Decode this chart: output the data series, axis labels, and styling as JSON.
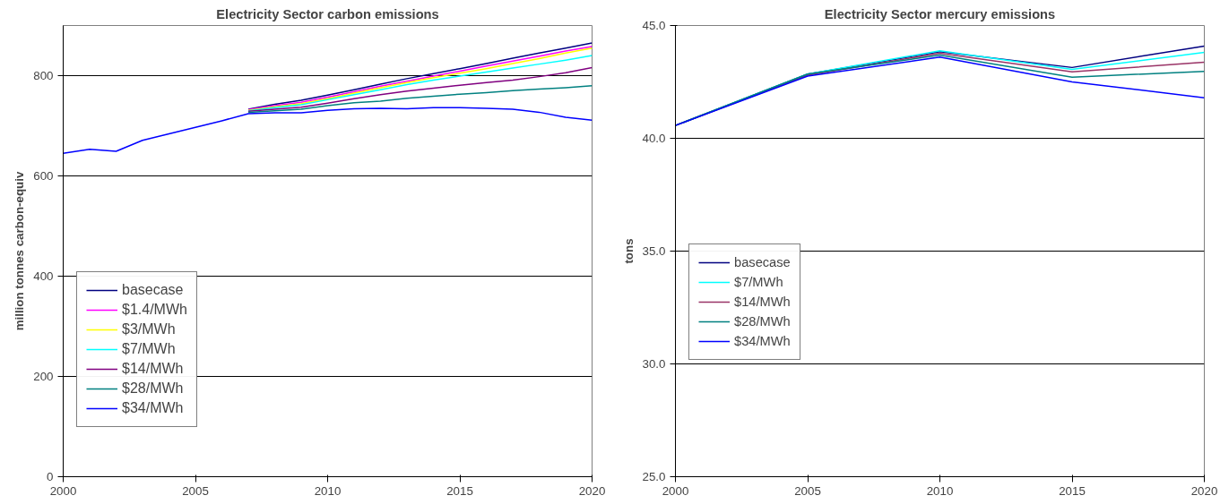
{
  "chart_data": [
    {
      "type": "line",
      "title": "Electricity Sector carbon emissions",
      "ylabel": "million tonnes carbon-equiv",
      "x": [
        2000,
        2001,
        2002,
        2003,
        2004,
        2005,
        2006,
        2007,
        2008,
        2009,
        2010,
        2011,
        2012,
        2013,
        2014,
        2015,
        2016,
        2017,
        2018,
        2019,
        2020
      ],
      "xlim": [
        2000,
        2020
      ],
      "xticks": [
        2000,
        2005,
        2010,
        2015,
        2020
      ],
      "ylim": [
        0,
        900
      ],
      "yticks": [
        0,
        200,
        400,
        600,
        800
      ],
      "grid": "y",
      "legend": "bottom left",
      "marker": "none",
      "line_style": "solid",
      "series": [
        {
          "name": "basecase",
          "color": "#000080",
          "values": [
            null,
            null,
            null,
            null,
            null,
            null,
            null,
            733,
            743,
            751,
            761,
            772,
            783,
            794,
            804,
            814,
            824,
            835,
            845,
            855,
            865
          ]
        },
        {
          "name": "$1.4/MWh",
          "color": "#ff00ff",
          "values": [
            null,
            null,
            null,
            null,
            null,
            null,
            null,
            732,
            740,
            747,
            757,
            768,
            779,
            789,
            799,
            809,
            819,
            829,
            839,
            849,
            858
          ]
        },
        {
          "name": "$3/MWh",
          "color": "#ffff00",
          "values": [
            null,
            null,
            null,
            null,
            null,
            null,
            null,
            731,
            738,
            744,
            754,
            765,
            776,
            786,
            796,
            805,
            814,
            824,
            834,
            845,
            855
          ]
        },
        {
          "name": "$7/MWh",
          "color": "#00ffff",
          "values": [
            null,
            null,
            null,
            null,
            null,
            null,
            null,
            730,
            736,
            742,
            752,
            762,
            772,
            782,
            791,
            799,
            807,
            815,
            823,
            831,
            840
          ]
        },
        {
          "name": "$14/MWh",
          "color": "#800080",
          "values": [
            null,
            null,
            null,
            null,
            null,
            null,
            null,
            729,
            733,
            737,
            745,
            754,
            762,
            769,
            775,
            781,
            786,
            791,
            798,
            806,
            816
          ]
        },
        {
          "name": "$28/MWh",
          "color": "#008080",
          "values": [
            null,
            null,
            null,
            null,
            null,
            null,
            null,
            727,
            730,
            733,
            740,
            746,
            749,
            755,
            759,
            763,
            766,
            770,
            773,
            776,
            780
          ]
        },
        {
          "name": "$34/MWh",
          "color": "#0000ff",
          "values": [
            645,
            653,
            649,
            671,
            684,
            697,
            710,
            724,
            726,
            726,
            731,
            734,
            735,
            734,
            736,
            736,
            735,
            733,
            727,
            717,
            711
          ]
        }
      ]
    },
    {
      "type": "line",
      "title": "Electricity Sector mercury emissions",
      "ylabel": "tons",
      "x": [
        2000,
        2005,
        2010,
        2015,
        2020
      ],
      "xlim": [
        2000,
        2020
      ],
      "xticks": [
        2000,
        2005,
        2010,
        2015,
        2020
      ],
      "ylim": [
        25,
        45
      ],
      "yticks": [
        {
          "value": 25,
          "label": "25.0"
        },
        {
          "value": 30,
          "label": "30.0"
        },
        {
          "value": 35,
          "label": "35.0"
        },
        {
          "value": 40,
          "label": "40.0"
        },
        {
          "value": 45,
          "label": "45.0"
        }
      ],
      "grid": "y",
      "legend": "left",
      "marker": "none",
      "line_style": "solid",
      "series": [
        {
          "name": "basecase",
          "color": "#000080",
          "values": [
            40.57,
            42.85,
            43.84,
            43.14,
            44.09
          ]
        },
        {
          "name": "$7/MWh",
          "color": "#00ffff",
          "values": [
            40.57,
            42.85,
            43.88,
            43.06,
            43.81
          ]
        },
        {
          "name": "$14/MWh",
          "color": "#993366",
          "values": [
            40.57,
            42.8,
            43.77,
            42.95,
            43.37
          ]
        },
        {
          "name": "$28/MWh",
          "color": "#008080",
          "values": [
            40.57,
            42.85,
            43.69,
            42.71,
            42.97
          ]
        },
        {
          "name": "$34/MWh",
          "color": "#0000ff",
          "values": [
            40.57,
            42.76,
            43.6,
            42.5,
            41.8
          ]
        }
      ]
    }
  ]
}
